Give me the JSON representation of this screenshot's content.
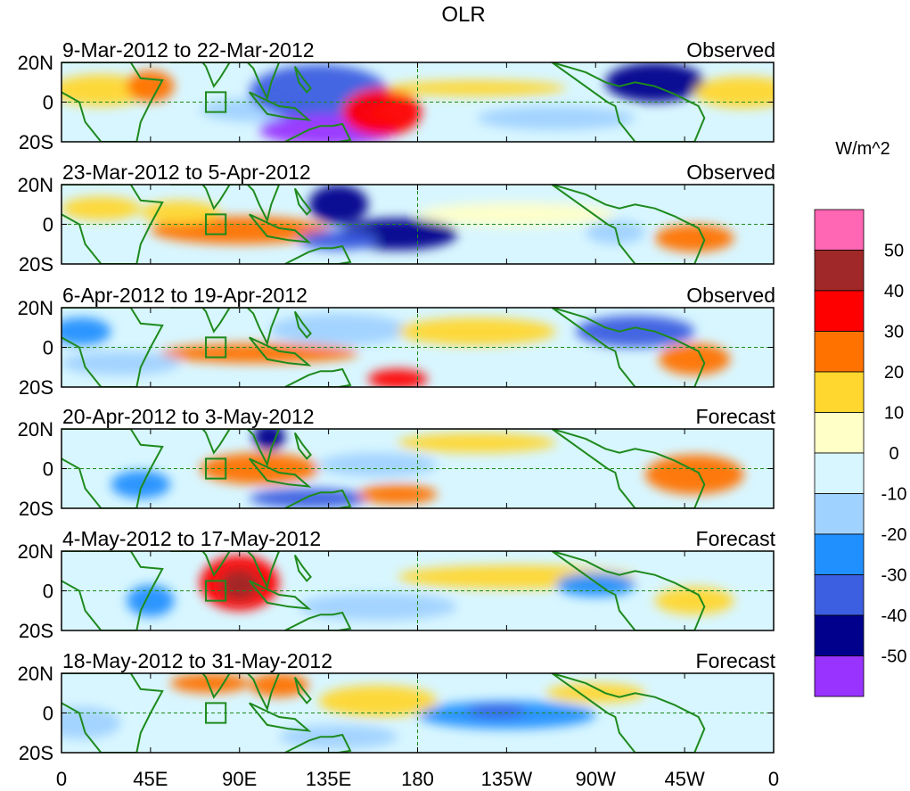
{
  "title": "OLR",
  "colorbar": {
    "units": "W/m^2",
    "colors": [
      "#ff66b3",
      "#a02828",
      "#ff0000",
      "#ff7200",
      "#ffd72e",
      "#ffffc8",
      "#d8f6ff",
      "#a0d2ff",
      "#2190ff",
      "#3c5ee0",
      "#00008c",
      "#9933ff"
    ],
    "labels": [
      "50",
      "40",
      "30",
      "20",
      "10",
      "0",
      "-10",
      "-20",
      "-30",
      "-40",
      "-50"
    ]
  },
  "axes": {
    "lat_labels": [
      "20N",
      "0",
      "20S"
    ],
    "lon_labels": [
      "0",
      "45E",
      "90E",
      "135E",
      "180",
      "135W",
      "90W",
      "45W",
      "0"
    ]
  },
  "panels": [
    {
      "date_range": "9-Mar-2012 to 22-Mar-2012",
      "type": "Observed"
    },
    {
      "date_range": "23-Mar-2012 to 5-Apr-2012",
      "type": "Observed"
    },
    {
      "date_range": "6-Apr-2012 to 19-Apr-2012",
      "type": "Observed"
    },
    {
      "date_range": "20-Apr-2012 to 3-May-2012",
      "type": "Forecast"
    },
    {
      "date_range": "4-May-2012 to 17-May-2012",
      "type": "Forecast"
    },
    {
      "date_range": "18-May-2012 to 31-May-2012",
      "type": "Forecast"
    }
  ],
  "blobs": [
    [
      {
        "lon": 20,
        "lat": 6,
        "w": 25,
        "h": 8,
        "c": 4
      },
      {
        "lon": 45,
        "lat": 8,
        "w": 12,
        "h": 8,
        "c": 3
      },
      {
        "lon": 100,
        "lat": -4,
        "w": 30,
        "h": 6,
        "c": 7
      },
      {
        "lon": 130,
        "lat": 5,
        "w": 35,
        "h": 14,
        "c": 9
      },
      {
        "lon": 135,
        "lat": -14,
        "w": 35,
        "h": 8,
        "c": 11
      },
      {
        "lon": 162,
        "lat": -5,
        "w": 20,
        "h": 12,
        "c": 2
      },
      {
        "lon": 210,
        "lat": 7,
        "w": 45,
        "h": 4,
        "c": 4
      },
      {
        "lon": 300,
        "lat": 10,
        "w": 25,
        "h": 10,
        "c": 10
      },
      {
        "lon": 250,
        "lat": -8,
        "w": 40,
        "h": 6,
        "c": 7
      },
      {
        "lon": 345,
        "lat": 5,
        "w": 25,
        "h": 8,
        "c": 4
      }
    ],
    [
      {
        "lon": 90,
        "lat": -3,
        "w": 45,
        "h": 7,
        "c": 3
      },
      {
        "lon": 60,
        "lat": 6,
        "w": 20,
        "h": 6,
        "c": 4
      },
      {
        "lon": 140,
        "lat": 10,
        "w": 15,
        "h": 10,
        "c": 10
      },
      {
        "lon": 170,
        "lat": -5,
        "w": 30,
        "h": 8,
        "c": 10
      },
      {
        "lon": 140,
        "lat": -8,
        "w": 20,
        "h": 5,
        "c": 9
      },
      {
        "lon": 230,
        "lat": 5,
        "w": 50,
        "h": 6,
        "c": 5
      },
      {
        "lon": 320,
        "lat": -7,
        "w": 20,
        "h": 7,
        "c": 3
      },
      {
        "lon": 280,
        "lat": -4,
        "w": 15,
        "h": 6,
        "c": 7
      },
      {
        "lon": 20,
        "lat": 8,
        "w": 20,
        "h": 6,
        "c": 4
      }
    ],
    [
      {
        "lon": 100,
        "lat": -3,
        "w": 50,
        "h": 5,
        "c": 3
      },
      {
        "lon": 30,
        "lat": -8,
        "w": 30,
        "h": 6,
        "c": 7
      },
      {
        "lon": 10,
        "lat": 8,
        "w": 15,
        "h": 7,
        "c": 8
      },
      {
        "lon": 140,
        "lat": 9,
        "w": 35,
        "h": 8,
        "c": 7
      },
      {
        "lon": 210,
        "lat": 8,
        "w": 40,
        "h": 7,
        "c": 4
      },
      {
        "lon": 290,
        "lat": 8,
        "w": 30,
        "h": 8,
        "c": 9
      },
      {
        "lon": 320,
        "lat": -6,
        "w": 18,
        "h": 8,
        "c": 3
      },
      {
        "lon": 170,
        "lat": -16,
        "w": 15,
        "h": 5,
        "c": 2
      }
    ],
    [
      {
        "lon": 100,
        "lat": 0,
        "w": 30,
        "h": 8,
        "c": 3
      },
      {
        "lon": 105,
        "lat": 16,
        "w": 8,
        "h": 7,
        "c": 10
      },
      {
        "lon": 125,
        "lat": -15,
        "w": 30,
        "h": 5,
        "c": 9
      },
      {
        "lon": 40,
        "lat": -8,
        "w": 15,
        "h": 7,
        "c": 8
      },
      {
        "lon": 210,
        "lat": 13,
        "w": 40,
        "h": 5,
        "c": 4
      },
      {
        "lon": 320,
        "lat": -3,
        "w": 25,
        "h": 10,
        "c": 3
      },
      {
        "lon": 160,
        "lat": 2,
        "w": 30,
        "h": 6,
        "c": 7
      },
      {
        "lon": 170,
        "lat": -13,
        "w": 20,
        "h": 5,
        "c": 3
      }
    ],
    [
      {
        "lon": 90,
        "lat": 4,
        "w": 20,
        "h": 14,
        "c": 2
      },
      {
        "lon": 90,
        "lat": 3,
        "w": 10,
        "h": 8,
        "c": 1
      },
      {
        "lon": 45,
        "lat": -5,
        "w": 12,
        "h": 8,
        "c": 8
      },
      {
        "lon": 230,
        "lat": 7,
        "w": 60,
        "h": 6,
        "c": 4
      },
      {
        "lon": 270,
        "lat": 3,
        "w": 20,
        "h": 6,
        "c": 8
      },
      {
        "lon": 160,
        "lat": -8,
        "w": 40,
        "h": 7,
        "c": 7
      },
      {
        "lon": 320,
        "lat": -5,
        "w": 20,
        "h": 7,
        "c": 4
      }
    ],
    [
      {
        "lon": 75,
        "lat": 15,
        "w": 20,
        "h": 5,
        "c": 3
      },
      {
        "lon": 110,
        "lat": 14,
        "w": 15,
        "h": 6,
        "c": 3
      },
      {
        "lon": 225,
        "lat": -1,
        "w": 45,
        "h": 7,
        "c": 8
      },
      {
        "lon": 220,
        "lat": 1,
        "w": 15,
        "h": 3,
        "c": 9
      },
      {
        "lon": 160,
        "lat": 6,
        "w": 30,
        "h": 8,
        "c": 4
      },
      {
        "lon": 270,
        "lat": 10,
        "w": 25,
        "h": 5,
        "c": 4
      },
      {
        "lon": 10,
        "lat": -5,
        "w": 20,
        "h": 8,
        "c": 7
      },
      {
        "lon": 140,
        "lat": -12,
        "w": 30,
        "h": 6,
        "c": 7
      }
    ]
  ]
}
